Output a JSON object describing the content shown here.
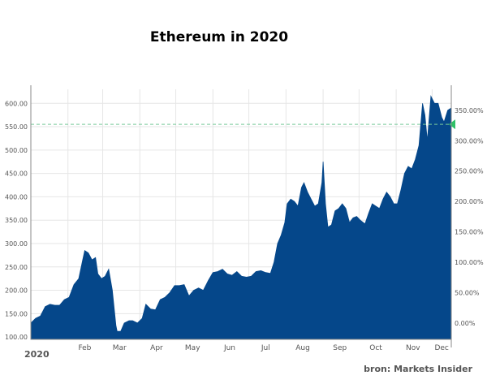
{
  "chart_data": {
    "type": "area",
    "title": "Ethereum in 2020",
    "year_label": "2020",
    "x_tick_labels": [
      "Feb",
      "Mar",
      "Apr",
      "May",
      "Jun",
      "Jul",
      "Aug",
      "Sep",
      "Oct",
      "Nov",
      "Dec"
    ],
    "x_range": [
      "2020-01-01",
      "2020-12-17"
    ],
    "y_left_ticks": [
      "100.00",
      "150.00",
      "200.00",
      "250.00",
      "300.00",
      "350.00",
      "400.00",
      "450.00",
      "500.00",
      "550.00",
      "600.00"
    ],
    "y_left_range": [
      95,
      630
    ],
    "y_right_ticks": [
      "0.00%",
      "50.00%",
      "100.00%",
      "150.00%",
      "200.00%",
      "250.00%",
      "300.00%",
      "350.00%"
    ],
    "y_right_percent_base": 130,
    "reference_line_value": 555,
    "grid": true,
    "colors": {
      "area": "#05478a",
      "reference_line": "#79c99b",
      "marker": "#2fc067",
      "grid": "#e6e6e6"
    },
    "series": [
      {
        "values": [
          [
            "2020-01-01",
            130
          ],
          [
            "2020-01-05",
            140
          ],
          [
            "2020-01-09",
            145
          ],
          [
            "2020-01-13",
            165
          ],
          [
            "2020-01-17",
            170
          ],
          [
            "2020-01-21",
            168
          ],
          [
            "2020-01-25",
            168
          ],
          [
            "2020-01-29",
            180
          ],
          [
            "2020-02-02",
            185
          ],
          [
            "2020-02-06",
            212
          ],
          [
            "2020-02-10",
            225
          ],
          [
            "2020-02-13",
            262
          ],
          [
            "2020-02-15",
            285
          ],
          [
            "2020-02-18",
            280
          ],
          [
            "2020-02-21",
            265
          ],
          [
            "2020-02-24",
            270
          ],
          [
            "2020-02-26",
            235
          ],
          [
            "2020-02-29",
            225
          ],
          [
            "2020-03-03",
            230
          ],
          [
            "2020-03-06",
            245
          ],
          [
            "2020-03-09",
            200
          ],
          [
            "2020-03-12",
            125
          ],
          [
            "2020-03-13",
            112
          ],
          [
            "2020-03-16",
            112
          ],
          [
            "2020-03-19",
            130
          ],
          [
            "2020-03-23",
            135
          ],
          [
            "2020-03-26",
            135
          ],
          [
            "2020-03-30",
            130
          ],
          [
            "2020-04-03",
            140
          ],
          [
            "2020-04-06",
            170
          ],
          [
            "2020-04-10",
            160
          ],
          [
            "2020-04-14",
            158
          ],
          [
            "2020-04-18",
            180
          ],
          [
            "2020-04-22",
            185
          ],
          [
            "2020-04-26",
            195
          ],
          [
            "2020-04-30",
            210
          ],
          [
            "2020-05-04",
            210
          ],
          [
            "2020-05-08",
            212
          ],
          [
            "2020-05-12",
            188
          ],
          [
            "2020-05-16",
            200
          ],
          [
            "2020-05-20",
            205
          ],
          [
            "2020-05-24",
            200
          ],
          [
            "2020-05-28",
            220
          ],
          [
            "2020-06-01",
            238
          ],
          [
            "2020-06-05",
            240
          ],
          [
            "2020-06-09",
            245
          ],
          [
            "2020-06-13",
            235
          ],
          [
            "2020-06-17",
            232
          ],
          [
            "2020-06-21",
            240
          ],
          [
            "2020-06-25",
            230
          ],
          [
            "2020-06-29",
            228
          ],
          [
            "2020-07-03",
            230
          ],
          [
            "2020-07-07",
            240
          ],
          [
            "2020-07-11",
            242
          ],
          [
            "2020-07-15",
            238
          ],
          [
            "2020-07-19",
            236
          ],
          [
            "2020-07-22",
            260
          ],
          [
            "2020-07-25",
            300
          ],
          [
            "2020-07-28",
            318
          ],
          [
            "2020-07-31",
            345
          ],
          [
            "2020-08-02",
            385
          ],
          [
            "2020-08-05",
            395
          ],
          [
            "2020-08-08",
            390
          ],
          [
            "2020-08-11",
            380
          ],
          [
            "2020-08-14",
            420
          ],
          [
            "2020-08-16",
            430
          ],
          [
            "2020-08-19",
            410
          ],
          [
            "2020-08-22",
            395
          ],
          [
            "2020-08-25",
            380
          ],
          [
            "2020-08-28",
            385
          ],
          [
            "2020-08-31",
            430
          ],
          [
            "2020-09-01",
            475
          ],
          [
            "2020-09-03",
            385
          ],
          [
            "2020-09-05",
            335
          ],
          [
            "2020-09-08",
            340
          ],
          [
            "2020-09-11",
            370
          ],
          [
            "2020-09-14",
            375
          ],
          [
            "2020-09-17",
            385
          ],
          [
            "2020-09-20",
            375
          ],
          [
            "2020-09-23",
            345
          ],
          [
            "2020-09-26",
            355
          ],
          [
            "2020-09-29",
            358
          ],
          [
            "2020-10-02",
            350
          ],
          [
            "2020-10-06",
            342
          ],
          [
            "2020-10-09",
            365
          ],
          [
            "2020-10-12",
            385
          ],
          [
            "2020-10-15",
            380
          ],
          [
            "2020-10-18",
            375
          ],
          [
            "2020-10-21",
            395
          ],
          [
            "2020-10-24",
            410
          ],
          [
            "2020-10-27",
            400
          ],
          [
            "2020-10-30",
            385
          ],
          [
            "2020-11-02",
            385
          ],
          [
            "2020-11-05",
            415
          ],
          [
            "2020-11-08",
            450
          ],
          [
            "2020-11-11",
            465
          ],
          [
            "2020-11-14",
            460
          ],
          [
            "2020-11-17",
            480
          ],
          [
            "2020-11-20",
            510
          ],
          [
            "2020-11-23",
            600
          ],
          [
            "2020-11-25",
            575
          ],
          [
            "2020-11-27",
            520
          ],
          [
            "2020-11-30",
            615
          ],
          [
            "2020-12-03",
            600
          ],
          [
            "2020-12-06",
            600
          ],
          [
            "2020-12-09",
            570
          ],
          [
            "2020-12-11",
            560
          ],
          [
            "2020-12-14",
            585
          ],
          [
            "2020-12-17",
            590
          ]
        ]
      }
    ]
  },
  "source": "bron: Markets Insider"
}
